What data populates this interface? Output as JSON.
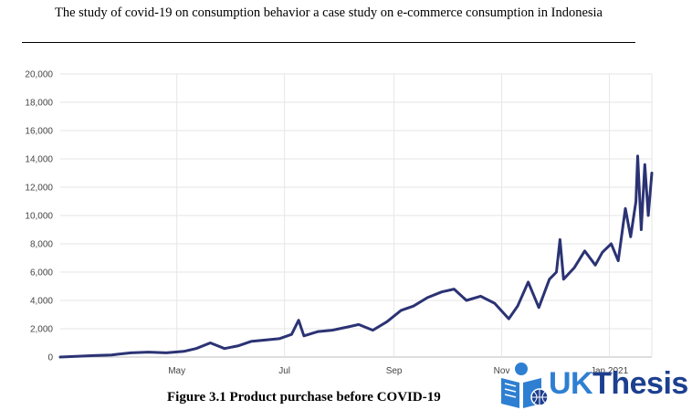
{
  "document": {
    "running_header": "The study of covid-19 on consumption behavior a case study on e-commerce consumption in Indonesia",
    "figure_caption": "Figure 3.1 Product purchase before COVID-19"
  },
  "logo": {
    "uk": "UK",
    "thesis": "Thesis",
    "icon": "reader-book-globe-icon",
    "colors": {
      "uk": "#2e7fd2",
      "thesis": "#1c3f8f"
    }
  },
  "chart_data": {
    "type": "line",
    "title": "",
    "xlabel": "",
    "ylabel": "",
    "x_ticks": [
      "May",
      "Jul",
      "Sep",
      "Nov",
      "Jan 2021"
    ],
    "x_tick_dates": [
      "2020-05-01",
      "2020-07-01",
      "2020-09-01",
      "2020-11-01",
      "2021-01-01"
    ],
    "xlim": [
      "2020-02-25",
      "2021-01-25"
    ],
    "ylim": [
      0,
      20000
    ],
    "y_ticks": [
      "0",
      "2,000",
      "4,000",
      "6,000",
      "8,000",
      "10,000",
      "12,000",
      "14,000",
      "16,000",
      "18,000",
      "20,000"
    ],
    "grid": true,
    "legend": "none",
    "series_color": "#2b3374",
    "series": [
      {
        "x": [
          "2020-02-25",
          "2020-03-05",
          "2020-03-15",
          "2020-03-25",
          "2020-04-05",
          "2020-04-15",
          "2020-04-25",
          "2020-05-05",
          "2020-05-12",
          "2020-05-20",
          "2020-05-28",
          "2020-06-05",
          "2020-06-12",
          "2020-06-20",
          "2020-06-28",
          "2020-07-05",
          "2020-07-09",
          "2020-07-12",
          "2020-07-20",
          "2020-07-28",
          "2020-08-05",
          "2020-08-12",
          "2020-08-20",
          "2020-08-28",
          "2020-09-05",
          "2020-09-12",
          "2020-09-20",
          "2020-09-28",
          "2020-10-05",
          "2020-10-12",
          "2020-10-20",
          "2020-10-28",
          "2020-11-05",
          "2020-11-10",
          "2020-11-16",
          "2020-11-22",
          "2020-11-28",
          "2020-12-02",
          "2020-12-04",
          "2020-12-06",
          "2020-12-12",
          "2020-12-18",
          "2020-12-24",
          "2020-12-28",
          "2021-01-02",
          "2021-01-06",
          "2021-01-10",
          "2021-01-13",
          "2021-01-16",
          "2021-01-17",
          "2021-01-19",
          "2021-01-21",
          "2021-01-23",
          "2021-01-25"
        ],
        "y": [
          0,
          50,
          100,
          150,
          300,
          350,
          300,
          400,
          600,
          1000,
          600,
          800,
          1100,
          1200,
          1300,
          1600,
          2600,
          1500,
          1800,
          1900,
          2100,
          2300,
          1900,
          2500,
          3300,
          3600,
          4200,
          4600,
          4800,
          4000,
          4300,
          3800,
          2700,
          3600,
          5300,
          3500,
          5500,
          6000,
          8300,
          5500,
          6300,
          7500,
          6500,
          7400,
          8000,
          6800,
          10500,
          8500,
          11000,
          14200,
          9000,
          13600,
          10000,
          13000
        ]
      }
    ]
  }
}
